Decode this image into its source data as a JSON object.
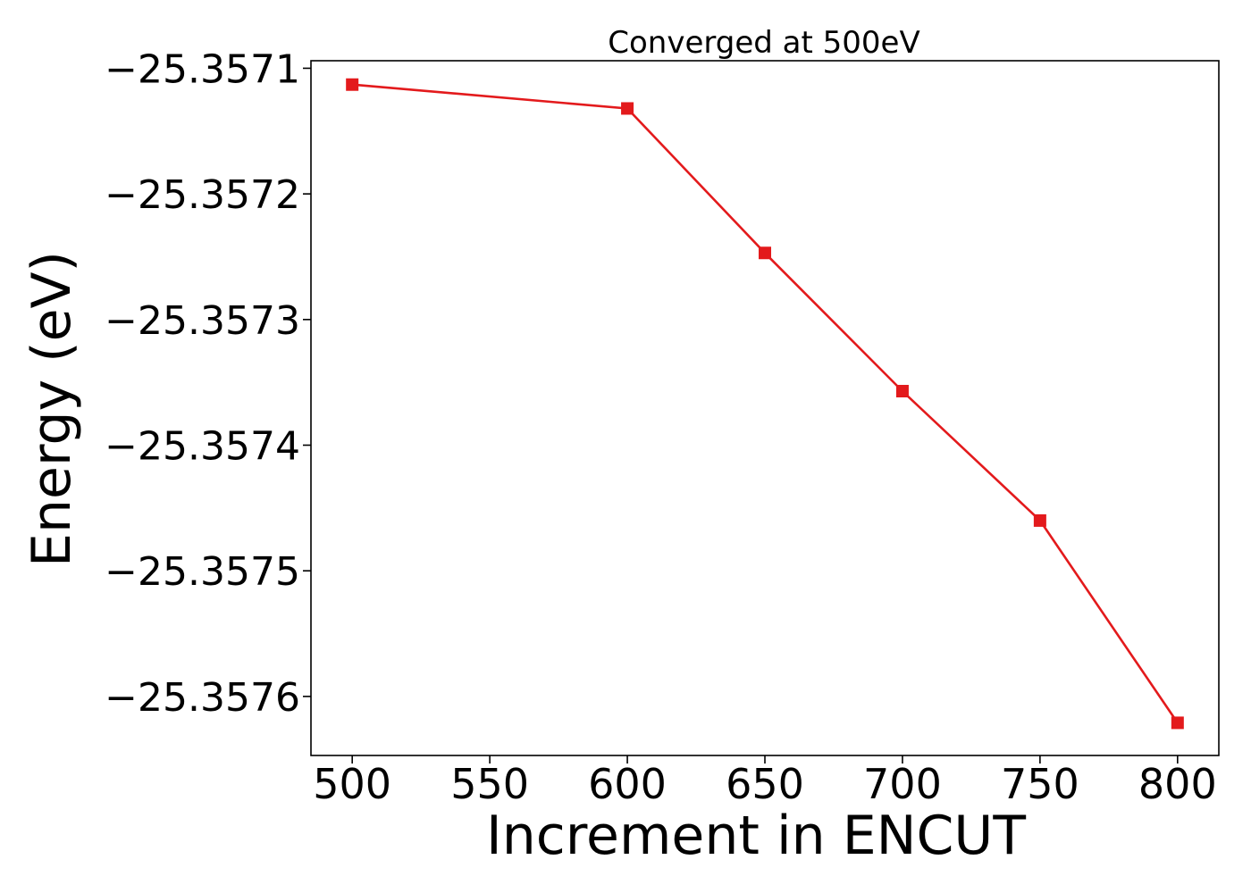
{
  "chart_data": {
    "type": "line",
    "title": "Converged at 500eV",
    "xlabel": "Increment in ENCUT",
    "ylabel": "Energy (eV)",
    "x": [
      500,
      600,
      650,
      700,
      750,
      800
    ],
    "series": [
      {
        "values": [
          -25.357113,
          -25.357132,
          -25.357247,
          -25.357357,
          -25.35746,
          -25.357621
        ],
        "color": "#e31a1c",
        "marker": "square"
      }
    ],
    "xlim": [
      485,
      815
    ],
    "ylim": [
      -25.357647,
      -25.357094
    ],
    "xticks": [
      500,
      550,
      600,
      650,
      700,
      750,
      800
    ],
    "xtick_labels": [
      "500",
      "550",
      "600",
      "650",
      "700",
      "750",
      "800"
    ],
    "yticks": [
      -25.3571,
      -25.3572,
      -25.3573,
      -25.3574,
      -25.3575,
      -25.3576
    ],
    "ytick_labels": [
      "−25.3571",
      "−25.3572",
      "−25.3573",
      "−25.3574",
      "−25.3575",
      "−25.3576"
    ],
    "grid": false,
    "legend": "none"
  }
}
